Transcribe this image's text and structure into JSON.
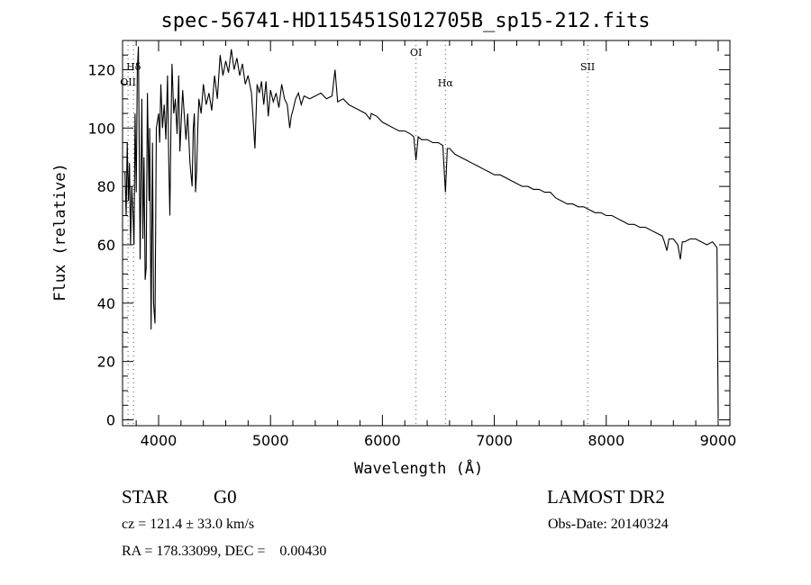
{
  "chart_data": {
    "type": "line",
    "title": "spec-56741-HD115451S012705B_sp15-212.fits",
    "xlabel": "Wavelength (Å)",
    "ylabel": "Flux (relative)",
    "xlim": [
      3678,
      9105
    ],
    "ylim": [
      -2,
      130
    ],
    "x_ticks": [
      4000,
      5000,
      6000,
      7000,
      8000,
      9000
    ],
    "y_ticks": [
      0,
      20,
      40,
      60,
      80,
      100,
      120
    ],
    "grid": false,
    "line_markers": [
      {
        "label": "OII",
        "wavelength": 3727
      },
      {
        "label": "Hδ",
        "wavelength": 3777
      },
      {
        "label": "OI",
        "wavelength": 6300
      },
      {
        "label": "Hα",
        "wavelength": 6563
      },
      {
        "label": "SII",
        "wavelength": 7834
      }
    ],
    "series": [
      {
        "name": "spectrum",
        "x": [
          3700,
          3710,
          3720,
          3730,
          3740,
          3750,
          3760,
          3770,
          3780,
          3790,
          3800,
          3810,
          3820,
          3835,
          3850,
          3860,
          3870,
          3880,
          3889,
          3900,
          3905,
          3915,
          3920,
          3933,
          3945,
          3955,
          3968,
          3980,
          4000,
          4010,
          4020,
          4035,
          4050,
          4065,
          4080,
          4090,
          4101,
          4110,
          4120,
          4135,
          4150,
          4165,
          4180,
          4190,
          4200,
          4215,
          4230,
          4245,
          4260,
          4280,
          4300,
          4310,
          4320,
          4330,
          4340,
          4350,
          4360,
          4380,
          4400,
          4425,
          4450,
          4475,
          4500,
          4525,
          4550,
          4575,
          4600,
          4625,
          4650,
          4675,
          4700,
          4725,
          4750,
          4775,
          4800,
          4830,
          4861,
          4880,
          4900,
          4920,
          4940,
          4960,
          4980,
          5000,
          5025,
          5050,
          5075,
          5100,
          5125,
          5150,
          5172,
          5185,
          5200,
          5225,
          5250,
          5275,
          5300,
          5350,
          5400,
          5450,
          5500,
          5550,
          5577,
          5600,
          5650,
          5700,
          5750,
          5800,
          5850,
          5890,
          5900,
          5950,
          6000,
          6050,
          6100,
          6150,
          6200,
          6250,
          6280,
          6300,
          6320,
          6350,
          6400,
          6450,
          6500,
          6540,
          6563,
          6580,
          6600,
          6650,
          6700,
          6750,
          6800,
          6850,
          6900,
          6950,
          7000,
          7050,
          7100,
          7150,
          7200,
          7250,
          7300,
          7350,
          7400,
          7450,
          7500,
          7550,
          7600,
          7650,
          7700,
          7750,
          7800,
          7850,
          7900,
          7950,
          8000,
          8050,
          8100,
          8150,
          8200,
          8250,
          8300,
          8350,
          8400,
          8450,
          8500,
          8520,
          8542,
          8560,
          8600,
          8640,
          8662,
          8680,
          8700,
          8750,
          8800,
          8850,
          8900,
          8950,
          8990,
          8995,
          9000
        ],
        "y": [
          85,
          70,
          95,
          75,
          88,
          60,
          80,
          72,
          60,
          105,
          78,
          120,
          128,
          55,
          110,
          62,
          90,
          48,
          52,
          112,
          100,
          75,
          100,
          31,
          95,
          40,
          33,
          100,
          105,
          95,
          115,
          100,
          108,
          96,
          118,
          90,
          70,
          100,
          122,
          105,
          110,
          98,
          118,
          92,
          100,
          113,
          104,
          96,
          105,
          88,
          80,
          100,
          105,
          78,
          85,
          100,
          110,
          105,
          115,
          108,
          112,
          106,
          118,
          110,
          125,
          118,
          123,
          119,
          127,
          120,
          124,
          118,
          122,
          115,
          118,
          112,
          93,
          115,
          112,
          116,
          108,
          116,
          104,
          113,
          109,
          112,
          107,
          115,
          110,
          108,
          100,
          104,
          106,
          110,
          112,
          108,
          111,
          110,
          111,
          112,
          110,
          111,
          120,
          109,
          110,
          108,
          107,
          106,
          105,
          103,
          105,
          104,
          102,
          101,
          100,
          99,
          99,
          98,
          97,
          89,
          97,
          96,
          96,
          95,
          95,
          94,
          78,
          93,
          93,
          91,
          90,
          89,
          88,
          87,
          86,
          85,
          84,
          84,
          83,
          82,
          81,
          80,
          80,
          79,
          79,
          78,
          78,
          76,
          75,
          74,
          74,
          73,
          73,
          72,
          71,
          71,
          70,
          70,
          69,
          68,
          67,
          67,
          66,
          66,
          65,
          64,
          63,
          61,
          58,
          62,
          62,
          60,
          55,
          61,
          61,
          62,
          62,
          61,
          60,
          61,
          59,
          30,
          1
        ]
      }
    ]
  },
  "annotations": {
    "object_type": "STAR",
    "subclass": "G0",
    "survey": "LAMOST DR2",
    "cz": "cz = 121.4 ± 33.0 km/s",
    "obs_date": "Obs-Date: 20140324",
    "coords": "RA = 178.33099, DEC =    0.00430"
  }
}
